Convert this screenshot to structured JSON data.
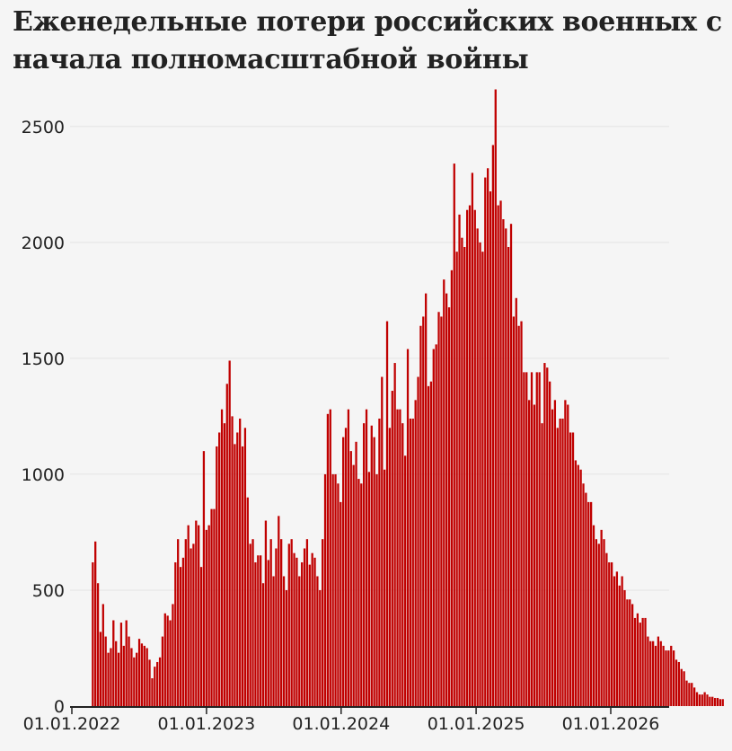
{
  "chart_data": {
    "type": "bar",
    "title": "Еженедельные потери российских военных с начала полномасштабной войны",
    "xlabel": "",
    "ylabel": "",
    "ylim": [
      0,
      2600
    ],
    "yticks": [
      0,
      500,
      1000,
      1500,
      2000,
      2500
    ],
    "grid": "horizontal",
    "color": "#c00000",
    "x_start": "2022-02-24",
    "xticks": [
      "01.01.2022",
      "01.01.2023",
      "01.01.2024",
      "01.01.2025",
      "01.01.2026"
    ],
    "values": [
      620,
      710,
      530,
      320,
      440,
      300,
      230,
      250,
      370,
      280,
      230,
      360,
      260,
      370,
      300,
      250,
      210,
      230,
      290,
      270,
      260,
      250,
      200,
      120,
      170,
      190,
      210,
      300,
      400,
      390,
      370,
      440,
      620,
      720,
      600,
      640,
      720,
      780,
      680,
      700,
      800,
      780,
      600,
      1100,
      760,
      780,
      850,
      850,
      1120,
      1180,
      1280,
      1220,
      1390,
      1490,
      1250,
      1130,
      1180,
      1240,
      1120,
      1200,
      900,
      700,
      720,
      620,
      650,
      650,
      530,
      800,
      630,
      720,
      560,
      680,
      820,
      720,
      560,
      500,
      700,
      720,
      660,
      640,
      560,
      620,
      680,
      720,
      610,
      660,
      640,
      560,
      500,
      720,
      1000,
      1260,
      1280,
      1000,
      1000,
      960,
      880,
      1160,
      1200,
      1280,
      1100,
      1040,
      1140,
      980,
      960,
      1220,
      1280,
      1010,
      1210,
      1160,
      1000,
      1240,
      1420,
      1020,
      1660,
      1200,
      1360,
      1480,
      1280,
      1280,
      1220,
      1080,
      1540,
      1240,
      1240,
      1320,
      1420,
      1640,
      1680,
      1780,
      1380,
      1400,
      1540,
      1560,
      1700,
      1680,
      1840,
      1780,
      1720,
      1880,
      2340,
      1960,
      2120,
      2020,
      1980,
      2140,
      2160,
      2300,
      2140,
      2060,
      2000,
      1960,
      2280,
      2320,
      2220,
      2420,
      2660,
      2160,
      2180,
      2100,
      2060,
      1980,
      2080,
      1680,
      1760,
      1640,
      1660,
      1440,
      1440,
      1320,
      1440,
      1300,
      1440,
      1440,
      1220,
      1480,
      1460,
      1400,
      1280,
      1320,
      1200,
      1240,
      1240,
      1320,
      1300,
      1180,
      1180,
      1060,
      1040,
      1020,
      960,
      920,
      880,
      880,
      780,
      720,
      700,
      760,
      720,
      660,
      620,
      620,
      560,
      580,
      520,
      560,
      500,
      460,
      460,
      440,
      380,
      400,
      360,
      380,
      380,
      300,
      280,
      280,
      260,
      300,
      280,
      260,
      240,
      240,
      260,
      240,
      200,
      190,
      160,
      150,
      110,
      100,
      100,
      80,
      60,
      50,
      50,
      60,
      50,
      40,
      40,
      35,
      35,
      30,
      30
    ]
  }
}
